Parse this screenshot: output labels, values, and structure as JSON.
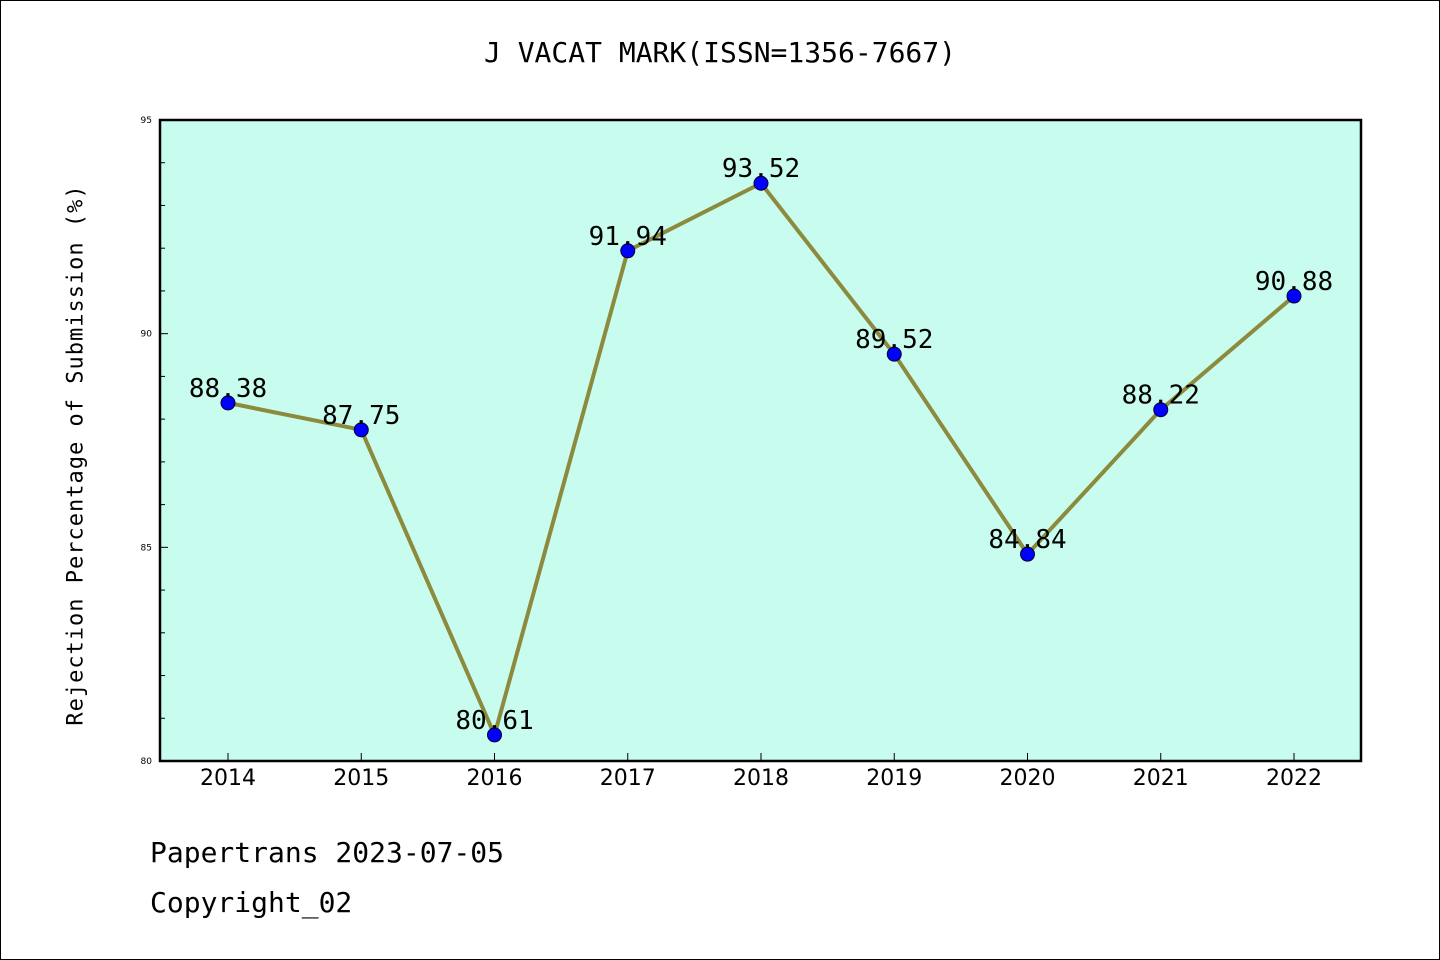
{
  "chart_data": {
    "type": "line",
    "title": "J VACAT MARK(ISSN=1356-7667)",
    "xlabel": "",
    "ylabel": "Rejection Percentage of Submission (%)",
    "categories": [
      "2014",
      "2015",
      "2016",
      "2017",
      "2018",
      "2019",
      "2020",
      "2021",
      "2022"
    ],
    "values": [
      88.38,
      87.75,
      80.61,
      91.94,
      93.52,
      89.52,
      84.84,
      88.22,
      90.88
    ],
    "value_labels": [
      "88.38",
      "87.75",
      "80.61",
      "91.94",
      "93.52",
      "89.52",
      "84.84",
      "88.22",
      "90.88"
    ],
    "ylim": [
      80,
      95
    ],
    "yticks": [
      80,
      85,
      90,
      95
    ],
    "ytick_labels": [
      "80",
      "85",
      "90",
      "95"
    ],
    "grid": false,
    "legend": "none",
    "colors": {
      "plot_background": "#c8fcee",
      "line": "#8c8a3c",
      "marker": "#0000ff"
    }
  },
  "footer": {
    "line1": "Papertrans 2023-07-05",
    "line2": "Copyright_02"
  }
}
